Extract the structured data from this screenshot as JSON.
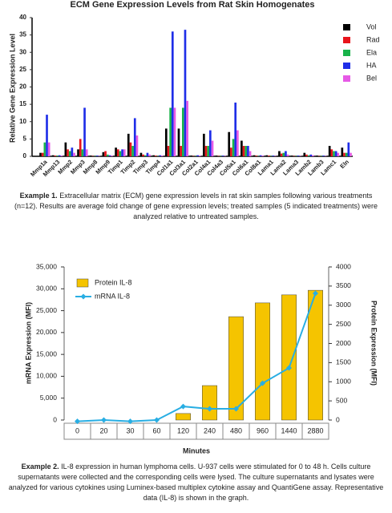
{
  "chart_data": [
    {
      "type": "bar",
      "title": "ECM Gene Expression Levels from Rat Skin Homogenates",
      "y_label": "Relative Gene Expression Level",
      "categories": [
        "Mmp1a",
        "Mmp13",
        "Mmp2",
        "Mmp3",
        "Mmp8",
        "Mmp9",
        "Timp1",
        "Timp2",
        "Timp3",
        "Timp4",
        "Col1a1",
        "Col3a1",
        "Col2a1",
        "Col4a1",
        "Col4a3",
        "Col5a1",
        "Col6a1",
        "Col8a1",
        "Lama1",
        "Lama2",
        "Lama3",
        "Lamb2",
        "Lamb3",
        "Lamc1",
        "Eln"
      ],
      "series": [
        {
          "name": "Vol",
          "color": "#000000",
          "values": [
            1,
            0.3,
            4,
            2,
            0.2,
            1.2,
            2.5,
            6.5,
            1,
            0.3,
            8,
            8,
            0.2,
            6.5,
            0.2,
            7,
            4.5,
            0.3,
            0.3,
            1.5,
            0.2,
            1,
            0.2,
            3,
            2.5
          ]
        },
        {
          "name": "Rad",
          "color": "#e8141c",
          "values": [
            1,
            0.2,
            2,
            5,
            0.1,
            1.5,
            2,
            4,
            0.5,
            0.2,
            3,
            3,
            0.1,
            3,
            0.1,
            2.5,
            3,
            0.2,
            0.2,
            0.8,
            0.1,
            0.5,
            0.1,
            2,
            1
          ]
        },
        {
          "name": "Ela",
          "color": "#19b34a",
          "values": [
            4,
            0.2,
            1.5,
            2,
            0.1,
            0.5,
            1.5,
            3,
            0.3,
            0.1,
            14,
            14,
            0.1,
            3,
            0.1,
            5,
            3,
            0.1,
            0.1,
            1,
            0.1,
            0.3,
            0.1,
            1.5,
            1
          ]
        },
        {
          "name": "HA",
          "color": "#1f2ee8",
          "values": [
            12,
            0.3,
            2.5,
            14,
            0.2,
            0.3,
            2,
            11,
            1,
            0.3,
            36,
            36.5,
            0.3,
            7.5,
            0.2,
            15.5,
            3,
            0.3,
            0.2,
            1.5,
            0.2,
            0.5,
            0.2,
            1.5,
            4
          ]
        },
        {
          "name": "Bel",
          "color": "#e659e6",
          "values": [
            4,
            0.2,
            1,
            2,
            0.1,
            0.2,
            2,
            6,
            0.5,
            0.2,
            14,
            16,
            0.2,
            4.5,
            0.1,
            7.5,
            1.5,
            0.2,
            0.1,
            0.5,
            0.1,
            0.3,
            0.1,
            1,
            1
          ]
        }
      ],
      "ylim": [
        0,
        40
      ],
      "yticks": [
        0,
        5,
        10,
        15,
        20,
        25,
        30,
        35,
        40
      ],
      "caption_label": "Example 1.",
      "caption": "Extracellular matrix (ECM) gene expression levels in rat skin samples following various treatments (n=12). Results are average fold change of gene expression levels; treated samples (5 indicated treatments) were analyzed relative to untreated samples."
    },
    {
      "type": "combo",
      "x_label": "Minutes",
      "y_label": "mRNA Expression (MFI)",
      "y2_label": "Protein Expression (MFI)",
      "categories": [
        "0",
        "20",
        "30",
        "60",
        "120",
        "240",
        "480",
        "960",
        "1440",
        "2880"
      ],
      "series": [
        {
          "name": "Protein IL-8",
          "type": "bar",
          "axis": "y2",
          "color": "#f5c400",
          "values": [
            0,
            0,
            0,
            0,
            170,
            900,
            2700,
            3060,
            3270,
            3390
          ]
        },
        {
          "name": "mRNA IL-8",
          "type": "line",
          "color": "#29aee3",
          "values": [
            -300,
            0,
            -300,
            0,
            3100,
            2560,
            2560,
            8400,
            11900,
            28950
          ]
        }
      ],
      "ylim": [
        0,
        35000
      ],
      "yticks": [
        0,
        {
          "value": 5000,
          "label": "5,000"
        },
        {
          "value": 10000,
          "label": "10,000"
        },
        {
          "value": 15000,
          "label": "15,000"
        },
        {
          "value": 20000,
          "label": "20,000"
        },
        {
          "value": 25000,
          "label": "25,000"
        },
        {
          "value": 30000,
          "label": "30,000"
        },
        {
          "value": 35000,
          "label": "35,000"
        }
      ],
      "y2lim": [
        0,
        4000
      ],
      "y2ticks": [
        0,
        500,
        1000,
        1500,
        2000,
        2500,
        3000,
        3500,
        4000
      ],
      "caption_label": "Example 2.",
      "caption": "IL-8 expression in human lymphoma cells. U-937 cells were stimulated for 0 to 48 h. Cells culture supernatants were collected and the corresponding cells were lysed. The culture supernatants and lysates were analyzed for various cytokines using Luminex-based multiplex cytokine assay and QuantiGene assay. Representative data (IL-8) is shown in the graph."
    }
  ]
}
